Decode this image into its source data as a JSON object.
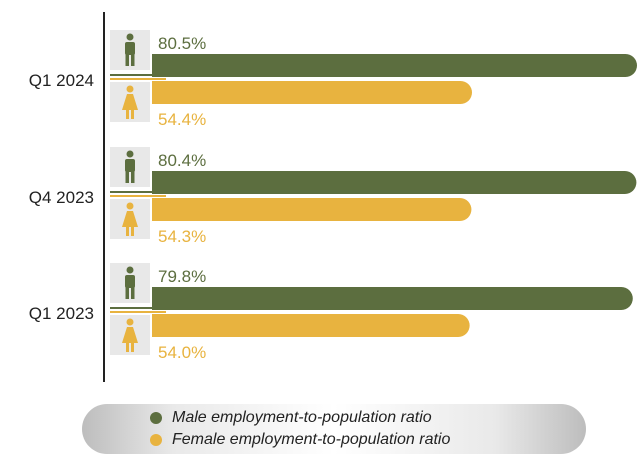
{
  "colors": {
    "male": "#5c6e3f",
    "female": "#e8b33f",
    "icon_bg": "#e8e8e8",
    "axis": "#222222"
  },
  "icons": {
    "male": "male-person-icon",
    "female": "female-person-icon"
  },
  "legend": {
    "male_label": "Male employment-to-population ratio",
    "female_label": "Female employment-to-population ratio"
  },
  "chart_data": {
    "type": "bar",
    "orientation": "horizontal",
    "categories": [
      "Q1 2024",
      "Q4 2023",
      "Q1 2023"
    ],
    "series": [
      {
        "name": "Male employment-to-population ratio",
        "values": [
          80.5,
          80.4,
          79.8
        ],
        "labels": [
          "80.5%",
          "80.4%",
          "79.8%"
        ]
      },
      {
        "name": "Female employment-to-population ratio",
        "values": [
          54.4,
          54.3,
          54.0
        ],
        "labels": [
          "54.4%",
          "54.3%",
          "54.0%"
        ]
      }
    ],
    "legend_position": "bottom",
    "grid": false
  }
}
